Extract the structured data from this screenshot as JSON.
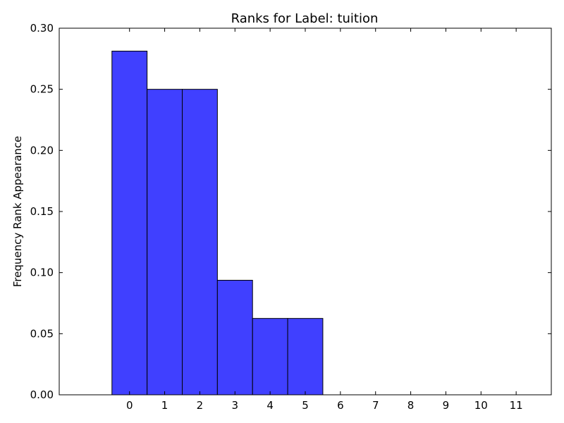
{
  "chart_data": {
    "type": "bar",
    "title": "Ranks for Label: tuition",
    "xlabel": "",
    "ylabel": "Frequency Rank Appearance",
    "categories": [
      "0",
      "1",
      "2",
      "3",
      "4",
      "5",
      "6",
      "7",
      "8",
      "9",
      "10",
      "11"
    ],
    "values": [
      0.28125,
      0.25,
      0.25,
      0.09375,
      0.0625,
      0.0625,
      0,
      0,
      0,
      0,
      0,
      0
    ],
    "xlim": [
      -2,
      12
    ],
    "ylim": [
      0,
      0.3
    ],
    "yticks": [
      "0.00",
      "0.05",
      "0.10",
      "0.15",
      "0.20",
      "0.25",
      "0.30"
    ],
    "grid": false,
    "bar_color": "#4040ff",
    "edge_color": "#000000"
  }
}
